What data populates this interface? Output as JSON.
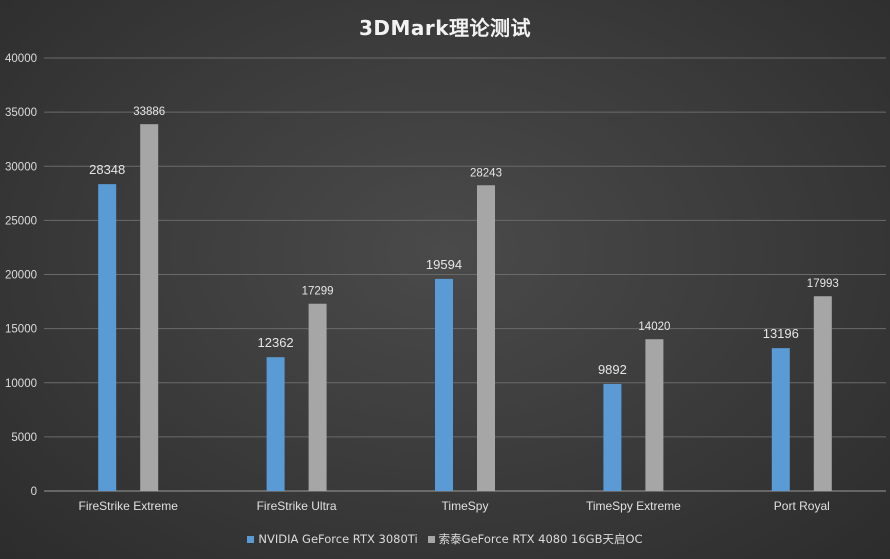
{
  "chart_data": {
    "type": "bar",
    "title": "3DMark理论测试",
    "xlabel": "",
    "ylabel": "",
    "ylim": [
      0,
      40000
    ],
    "yticks": [
      0,
      5000,
      10000,
      15000,
      20000,
      25000,
      30000,
      35000,
      40000
    ],
    "grid": true,
    "legend_position": "bottom",
    "categories": [
      "FireStrike Extreme",
      "FireStrike Ultra",
      "TimeSpy",
      "TimeSpy Extreme",
      "Port Royal"
    ],
    "series": [
      {
        "name": "NVIDIA GeForce RTX 3080Ti",
        "color": "#5b9bd5",
        "values": [
          28348,
          12362,
          19594,
          9892,
          13196
        ]
      },
      {
        "name": "索泰GeForce RTX 4080 16GB天启OC",
        "color": "#a6a6a6",
        "values": [
          33886,
          17299,
          28243,
          14020,
          17993
        ]
      }
    ]
  }
}
